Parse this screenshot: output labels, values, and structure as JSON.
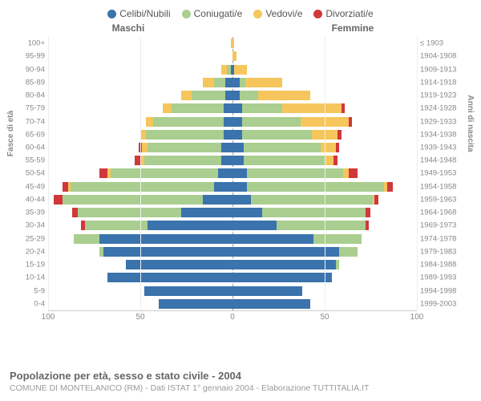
{
  "legend": {
    "items": [
      {
        "label": "Celibi/Nubili",
        "color": "#3b73ad"
      },
      {
        "label": "Coniugati/e",
        "color": "#a9ce8f"
      },
      {
        "label": "Vedovi/e",
        "color": "#f6c65c"
      },
      {
        "label": "Divorziati/e",
        "color": "#d0383b"
      }
    ]
  },
  "headers": {
    "male": "Maschi",
    "female": "Femmine"
  },
  "axis_titles": {
    "left": "Fasce di età",
    "right": "Anni di nascita"
  },
  "footer": {
    "title": "Popolazione per età, sesso e stato civile - 2004",
    "sub": "COMUNE DI MONTELANICO (RM) - Dati ISTAT 1° gennaio 2004 - Elaborazione TUTTITALIA.IT"
  },
  "chart": {
    "type": "population-pyramid",
    "x_max": 100,
    "x_ticks": [
      100,
      50,
      0,
      50,
      100
    ],
    "background_color": "#ffffff",
    "grid_color": "#eeeeee",
    "axis_color": "#cccccc",
    "label_color": "#888888",
    "font_size": 10,
    "title_fontsize": 13,
    "rows": [
      {
        "age": "100+",
        "birth": "≤ 1903",
        "m": {
          "cel": 0,
          "con": 0,
          "ved": 1,
          "div": 0
        },
        "f": {
          "cel": 0,
          "con": 0,
          "ved": 1,
          "div": 0
        }
      },
      {
        "age": "95-99",
        "birth": "1904-1908",
        "m": {
          "cel": 0,
          "con": 0,
          "ved": 0,
          "div": 0
        },
        "f": {
          "cel": 0,
          "con": 0,
          "ved": 2,
          "div": 0
        }
      },
      {
        "age": "90-94",
        "birth": "1909-1913",
        "m": {
          "cel": 1,
          "con": 2,
          "ved": 3,
          "div": 0
        },
        "f": {
          "cel": 1,
          "con": 0,
          "ved": 7,
          "div": 0
        }
      },
      {
        "age": "85-89",
        "birth": "1914-1918",
        "m": {
          "cel": 4,
          "con": 6,
          "ved": 6,
          "div": 0
        },
        "f": {
          "cel": 4,
          "con": 3,
          "ved": 20,
          "div": 0
        }
      },
      {
        "age": "80-84",
        "birth": "1919-1923",
        "m": {
          "cel": 4,
          "con": 18,
          "ved": 6,
          "div": 0
        },
        "f": {
          "cel": 4,
          "con": 10,
          "ved": 28,
          "div": 0
        }
      },
      {
        "age": "75-79",
        "birth": "1924-1928",
        "m": {
          "cel": 5,
          "con": 28,
          "ved": 5,
          "div": 0
        },
        "f": {
          "cel": 5,
          "con": 22,
          "ved": 32,
          "div": 2
        }
      },
      {
        "age": "70-74",
        "birth": "1929-1933",
        "m": {
          "cel": 5,
          "con": 38,
          "ved": 4,
          "div": 0
        },
        "f": {
          "cel": 5,
          "con": 32,
          "ved": 26,
          "div": 2
        }
      },
      {
        "age": "65-69",
        "birth": "1934-1938",
        "m": {
          "cel": 5,
          "con": 42,
          "ved": 3,
          "div": 0
        },
        "f": {
          "cel": 5,
          "con": 38,
          "ved": 14,
          "div": 2
        }
      },
      {
        "age": "60-64",
        "birth": "1939-1943",
        "m": {
          "cel": 6,
          "con": 40,
          "ved": 3,
          "div": 2
        },
        "f": {
          "cel": 6,
          "con": 42,
          "ved": 8,
          "div": 2
        }
      },
      {
        "age": "55-59",
        "birth": "1944-1948",
        "m": {
          "cel": 6,
          "con": 42,
          "ved": 2,
          "div": 3
        },
        "f": {
          "cel": 6,
          "con": 44,
          "ved": 5,
          "div": 2
        }
      },
      {
        "age": "50-54",
        "birth": "1949-1953",
        "m": {
          "cel": 8,
          "con": 58,
          "ved": 2,
          "div": 4
        },
        "f": {
          "cel": 8,
          "con": 52,
          "ved": 3,
          "div": 5
        }
      },
      {
        "age": "45-49",
        "birth": "1954-1958",
        "m": {
          "cel": 10,
          "con": 78,
          "ved": 1,
          "div": 3
        },
        "f": {
          "cel": 8,
          "con": 74,
          "ved": 2,
          "div": 3
        }
      },
      {
        "age": "40-44",
        "birth": "1959-1963",
        "m": {
          "cel": 16,
          "con": 76,
          "ved": 0,
          "div": 5
        },
        "f": {
          "cel": 10,
          "con": 66,
          "ved": 1,
          "div": 2
        }
      },
      {
        "age": "35-39",
        "birth": "1964-1968",
        "m": {
          "cel": 28,
          "con": 56,
          "ved": 0,
          "div": 3
        },
        "f": {
          "cel": 16,
          "con": 56,
          "ved": 0,
          "div": 3
        }
      },
      {
        "age": "30-34",
        "birth": "1969-1973",
        "m": {
          "cel": 46,
          "con": 34,
          "ved": 0,
          "div": 2
        },
        "f": {
          "cel": 24,
          "con": 48,
          "ved": 0,
          "div": 2
        }
      },
      {
        "age": "25-29",
        "birth": "1974-1978",
        "m": {
          "cel": 72,
          "con": 14,
          "ved": 0,
          "div": 0
        },
        "f": {
          "cel": 44,
          "con": 26,
          "ved": 0,
          "div": 0
        }
      },
      {
        "age": "20-24",
        "birth": "1979-1983",
        "m": {
          "cel": 70,
          "con": 2,
          "ved": 0,
          "div": 0
        },
        "f": {
          "cel": 58,
          "con": 10,
          "ved": 0,
          "div": 0
        }
      },
      {
        "age": "15-19",
        "birth": "1984-1988",
        "m": {
          "cel": 58,
          "con": 0,
          "ved": 0,
          "div": 0
        },
        "f": {
          "cel": 56,
          "con": 2,
          "ved": 0,
          "div": 0
        }
      },
      {
        "age": "10-14",
        "birth": "1989-1993",
        "m": {
          "cel": 68,
          "con": 0,
          "ved": 0,
          "div": 0
        },
        "f": {
          "cel": 54,
          "con": 0,
          "ved": 0,
          "div": 0
        }
      },
      {
        "age": "5-9",
        "birth": "1994-1998",
        "m": {
          "cel": 48,
          "con": 0,
          "ved": 0,
          "div": 0
        },
        "f": {
          "cel": 38,
          "con": 0,
          "ved": 0,
          "div": 0
        }
      },
      {
        "age": "0-4",
        "birth": "1999-2003",
        "m": {
          "cel": 40,
          "con": 0,
          "ved": 0,
          "div": 0
        },
        "f": {
          "cel": 42,
          "con": 0,
          "ved": 0,
          "div": 0
        }
      }
    ]
  }
}
